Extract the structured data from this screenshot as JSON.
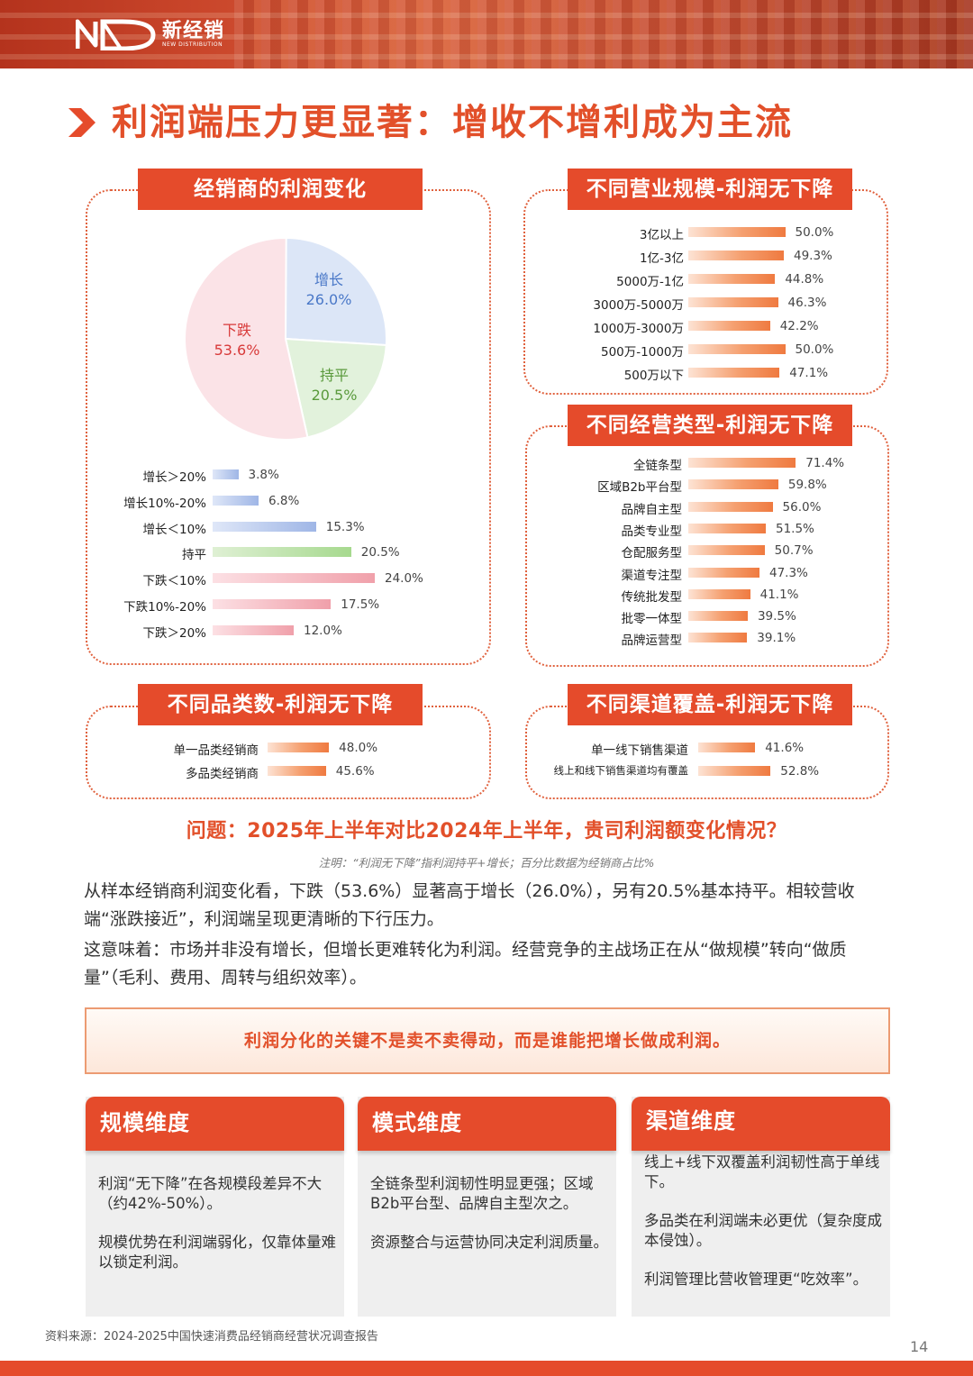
{
  "header": {
    "logo_cn": "新经销",
    "logo_en": "NEW DISTRIBUTION",
    "brand_color": "#e54b2b"
  },
  "page_title": "利润端压力更显著：增收不增利成为主流",
  "profit_change": {
    "label": "经销商的利润变化",
    "pie": [
      {
        "name": "增长",
        "value": "26.0%",
        "pct": 26.0,
        "color": "#dce6f7",
        "text_color": "#4a78c8"
      },
      {
        "name": "持平",
        "value": "20.5%",
        "pct": 20.5,
        "color": "#e2f2dc",
        "text_color": "#5a9a3c"
      },
      {
        "name": "下跌",
        "value": "53.6%",
        "pct": 53.6,
        "color": "#fbe3e7",
        "text_color": "#d83a3a"
      }
    ],
    "bars": [
      {
        "label": "增长＞20%",
        "value": "3.8%",
        "pct": 3.8,
        "kind": "blue"
      },
      {
        "label": "增长10%-20%",
        "value": "6.8%",
        "pct": 6.8,
        "kind": "blue"
      },
      {
        "label": "增长＜10%",
        "value": "15.3%",
        "pct": 15.3,
        "kind": "blue"
      },
      {
        "label": "持平",
        "value": "20.5%",
        "pct": 20.5,
        "kind": "green"
      },
      {
        "label": "下跌＜10%",
        "value": "24.0%",
        "pct": 24.0,
        "kind": "pink"
      },
      {
        "label": "下跌10%-20%",
        "value": "17.5%",
        "pct": 17.5,
        "kind": "pink"
      },
      {
        "label": "下跌＞20%",
        "value": "12.0%",
        "pct": 12.0,
        "kind": "pink"
      }
    ]
  },
  "scale": {
    "label": "不同营业规模-利润无下降",
    "bars": [
      {
        "label": "3亿以上",
        "value": "50.0%",
        "pct": 50.0
      },
      {
        "label": "1亿-3亿",
        "value": "49.3%",
        "pct": 49.3
      },
      {
        "label": "5000万-1亿",
        "value": "44.8%",
        "pct": 44.8
      },
      {
        "label": "3000万-5000万",
        "value": "46.3%",
        "pct": 46.3
      },
      {
        "label": "1000万-3000万",
        "value": "42.2%",
        "pct": 42.2
      },
      {
        "label": "500万-1000万",
        "value": "50.0%",
        "pct": 50.0
      },
      {
        "label": "500万以下",
        "value": "47.1%",
        "pct": 47.1
      }
    ]
  },
  "business_type": {
    "label": "不同经营类型-利润无下降",
    "bars": [
      {
        "label": "全链条型",
        "value": "71.4%",
        "pct": 71.4
      },
      {
        "label": "区域B2b平台型",
        "value": "59.8%",
        "pct": 59.8
      },
      {
        "label": "品牌自主型",
        "value": "56.0%",
        "pct": 56.0
      },
      {
        "label": "品类专业型",
        "value": "51.5%",
        "pct": 51.5
      },
      {
        "label": "仓配服务型",
        "value": "50.7%",
        "pct": 50.7
      },
      {
        "label": "渠道专注型",
        "value": "47.3%",
        "pct": 47.3
      },
      {
        "label": "传统批发型",
        "value": "41.1%",
        "pct": 41.1
      },
      {
        "label": "批零一体型",
        "value": "39.5%",
        "pct": 39.5
      },
      {
        "label": "品牌运营型",
        "value": "39.1%",
        "pct": 39.1
      }
    ]
  },
  "category": {
    "label": "不同品类数-利润无下降",
    "bars": [
      {
        "label": "单一品类经销商",
        "value": "48.0%",
        "pct": 48.0
      },
      {
        "label": "多品类经销商",
        "value": "45.6%",
        "pct": 45.6
      }
    ]
  },
  "channel": {
    "label": "不同渠道覆盖-利润无下降",
    "bars": [
      {
        "label": "单一线下销售渠道",
        "value": "41.6%",
        "pct": 41.6
      },
      {
        "label": "线上和线下销售渠道均有覆盖",
        "value": "52.8%",
        "pct": 52.8
      }
    ]
  },
  "question": "问题：2025年上半年对比2024年上半年，贵司利润额变化情况？",
  "note": "注明：“利润无下降”指利润持平+增长；百分比数据为经销商占比%",
  "paragraph1": "从样本经销商利润变化看，下跌（53.6%）显著高于增长（26.0%），另有20.5%基本持平。相较营收端“涨跌接近”，利润端呈现更清晰的下行压力。",
  "paragraph2": "这意味着：市场并非没有增长，但增长更难转化为利润。经营竞争的主战场正在从“做规模”转向“做质量”（毛利、费用、周转与组织效率）。",
  "callout": "利润分化的关键不是卖不卖得动，而是谁能把增长做成利润。",
  "cards": [
    {
      "title": "规模维度",
      "points": [
        "利润“无下降”在各规模段差异不大（约42%-50%）。",
        "规模优势在利润端弱化，仅靠体量难以锁定利润。"
      ]
    },
    {
      "title": "模式维度",
      "points": [
        "全链条型利润韧性明显更强；区域B2b平台型、品牌自主型次之。",
        "资源整合与运营协同决定利润质量。"
      ]
    },
    {
      "title": "渠道维度",
      "points": [
        "线上+线下双覆盖利润韧性高于单线下。",
        "多品类在利润端未必更优（复杂度成本侵蚀）。",
        "利润管理比营收管理更“吃效率”。"
      ]
    }
  ],
  "source": "资料来源：2024-2025中国快速消费品经销商经营状况调查报告",
  "page_number": "14"
}
